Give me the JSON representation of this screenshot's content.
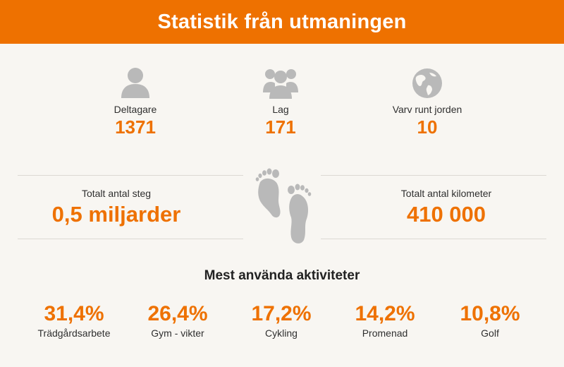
{
  "header": {
    "title": "Statistik från utmaningen"
  },
  "stats": [
    {
      "icon": "person-icon",
      "label": "Deltagare",
      "value": "1371"
    },
    {
      "icon": "group-icon",
      "label": "Lag",
      "value": "171"
    },
    {
      "icon": "globe-icon",
      "label": "Varv runt jorden",
      "value": "10"
    }
  ],
  "totals": {
    "steps": {
      "label": "Totalt antal steg",
      "value": "0,5 miljarder"
    },
    "km": {
      "label": "Totalt antal kilometer",
      "value": "410 000"
    }
  },
  "footprints_icon": "footprints-icon",
  "activities": {
    "title": "Mest använda aktiviteter",
    "items": [
      {
        "pct": "31,4%",
        "name": "Trädgårdsarbete"
      },
      {
        "pct": "26,4%",
        "name": "Gym - vikter"
      },
      {
        "pct": "17,2%",
        "name": "Cykling"
      },
      {
        "pct": "14,2%",
        "name": "Promenad"
      },
      {
        "pct": "10,8%",
        "name": "Golf"
      }
    ]
  },
  "colors": {
    "accent": "#ee7100",
    "background": "#f8f6f2",
    "icon": "#b9b9b9"
  }
}
